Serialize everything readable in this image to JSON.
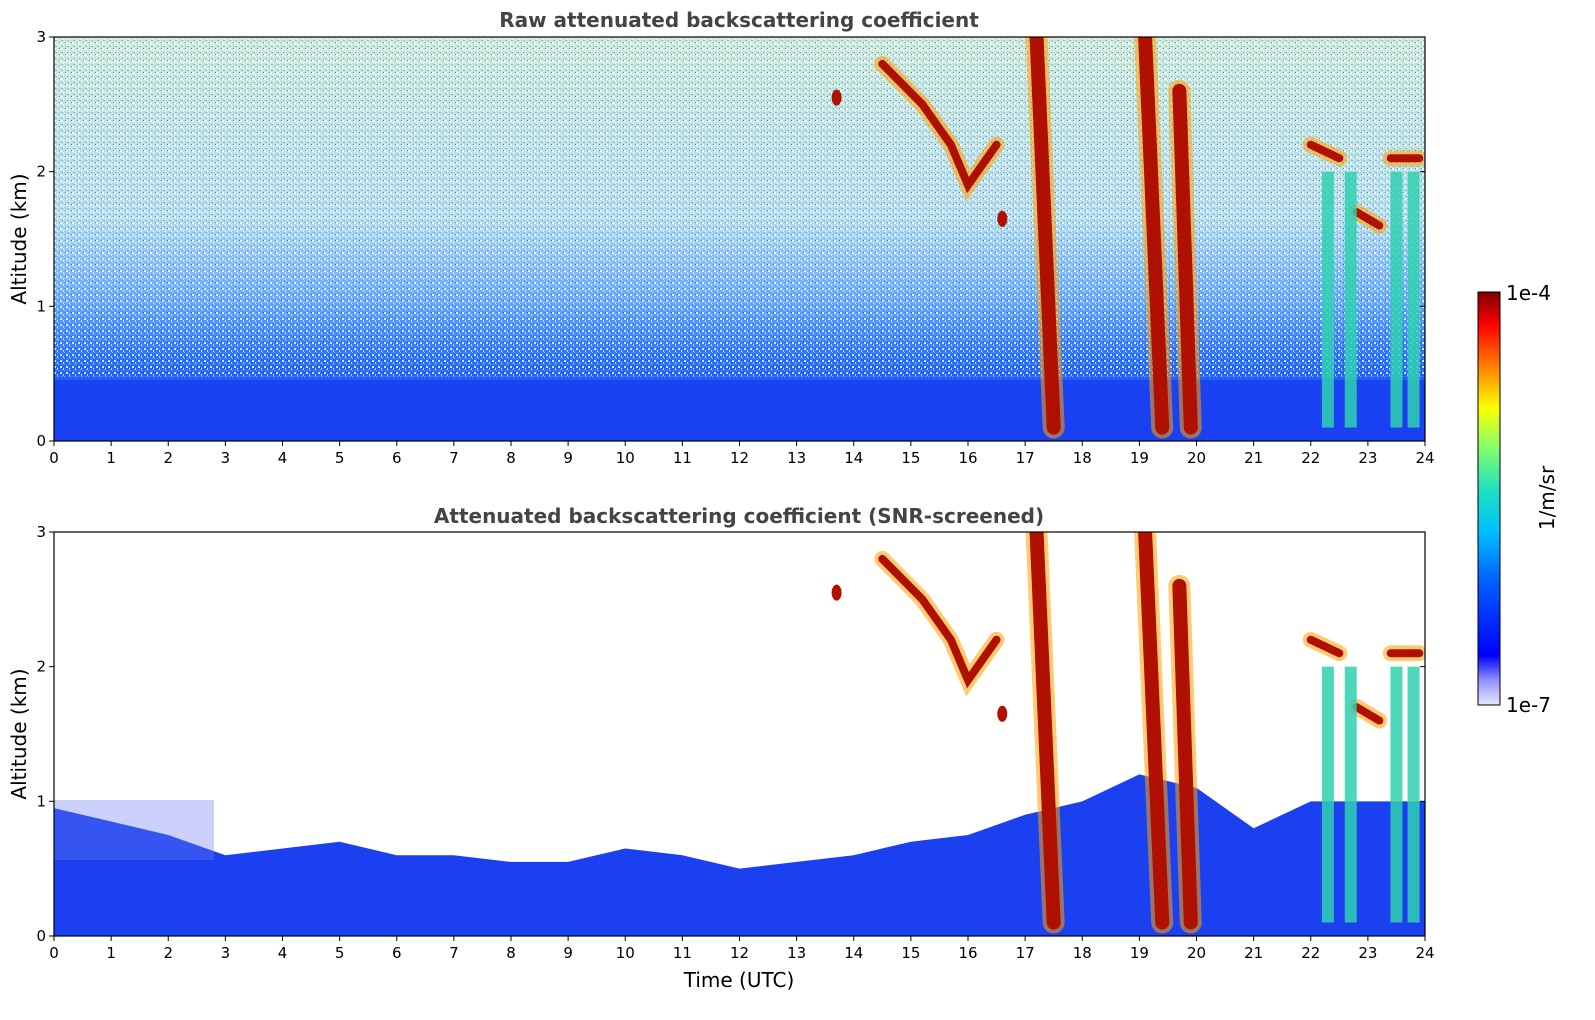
{
  "chart_data": [
    {
      "type": "heatmap",
      "title": "Raw attenuated backscattering coefficient",
      "xlabel": "",
      "ylabel": "Altitude (km)",
      "xlim": [
        0,
        24
      ],
      "ylim": [
        0,
        3
      ],
      "xticks": [
        "0",
        "1",
        "2",
        "3",
        "4",
        "5",
        "6",
        "7",
        "8",
        "9",
        "10",
        "11",
        "12",
        "13",
        "14",
        "15",
        "16",
        "17",
        "18",
        "19",
        "20",
        "21",
        "22",
        "23",
        "24"
      ],
      "yticks": [
        "0",
        "1",
        "2",
        "3"
      ],
      "x_units": "hours UTC",
      "y_units": "km",
      "surface_layer_top_km": 0.45,
      "noise_background": "noisy blue/cyan/yellow speckle increasing with altitude",
      "cloud_features": [
        {
          "name": "descending layer",
          "points": [
            [
              14.5,
              2.8
            ],
            [
              15.2,
              2.5
            ],
            [
              15.7,
              2.2
            ],
            [
              16.0,
              1.9
            ],
            [
              16.5,
              2.2
            ]
          ]
        },
        {
          "name": "small patch",
          "points": [
            [
              13.7,
              2.55
            ]
          ]
        },
        {
          "name": "low patch",
          "points": [
            [
              16.6,
              1.65
            ]
          ]
        },
        {
          "name": "precip column",
          "points": [
            [
              17.2,
              3.0
            ],
            [
              17.5,
              0.1
            ]
          ]
        },
        {
          "name": "precip column",
          "points": [
            [
              19.1,
              3.0
            ],
            [
              19.4,
              0.1
            ]
          ]
        },
        {
          "name": "precip column",
          "points": [
            [
              19.7,
              2.6
            ],
            [
              19.9,
              0.1
            ]
          ]
        },
        {
          "name": "layer",
          "points": [
            [
              22.0,
              2.2
            ],
            [
              22.5,
              2.1
            ]
          ]
        },
        {
          "name": "layer",
          "points": [
            [
              22.8,
              1.7
            ],
            [
              23.2,
              1.6
            ]
          ]
        },
        {
          "name": "layer",
          "points": [
            [
              23.4,
              2.1
            ],
            [
              23.9,
              2.1
            ]
          ]
        },
        {
          "name": "rain shafts",
          "points": [
            [
              22.3,
              0.1
            ],
            [
              22.7,
              0.1
            ],
            [
              23.5,
              0.1
            ],
            [
              23.8,
              0.1
            ]
          ]
        }
      ]
    },
    {
      "type": "heatmap",
      "title": "Attenuated backscattering coefficient (SNR-screened)",
      "xlabel": "Time (UTC)",
      "ylabel": "Altitude (km)",
      "xlim": [
        0,
        24
      ],
      "ylim": [
        0,
        3
      ],
      "xticks": [
        "0",
        "1",
        "2",
        "3",
        "4",
        "5",
        "6",
        "7",
        "8",
        "9",
        "10",
        "11",
        "12",
        "13",
        "14",
        "15",
        "16",
        "17",
        "18",
        "19",
        "20",
        "21",
        "22",
        "23",
        "24"
      ],
      "yticks": [
        "0",
        "1",
        "2",
        "3"
      ],
      "boundary_layer_top_km": [
        [
          0,
          0.95
        ],
        [
          1,
          0.85
        ],
        [
          2,
          0.75
        ],
        [
          3,
          0.6
        ],
        [
          4,
          0.65
        ],
        [
          5,
          0.7
        ],
        [
          6,
          0.6
        ],
        [
          7,
          0.6
        ],
        [
          8,
          0.55
        ],
        [
          9,
          0.55
        ],
        [
          10,
          0.65
        ],
        [
          11,
          0.6
        ],
        [
          12,
          0.5
        ],
        [
          13,
          0.55
        ],
        [
          14,
          0.6
        ],
        [
          15,
          0.7
        ],
        [
          16,
          0.75
        ],
        [
          17,
          0.9
        ],
        [
          18,
          1.0
        ],
        [
          19,
          1.2
        ],
        [
          20,
          1.1
        ],
        [
          21,
          0.8
        ],
        [
          22,
          1.0
        ],
        [
          23,
          1.0
        ],
        [
          24,
          1.0
        ]
      ],
      "screened": "values below SNR threshold shown white"
    }
  ],
  "colorbar": {
    "label": "1/m/sr",
    "max_label": "1e-4",
    "min_label": "1e-7",
    "colormap": "jet"
  }
}
